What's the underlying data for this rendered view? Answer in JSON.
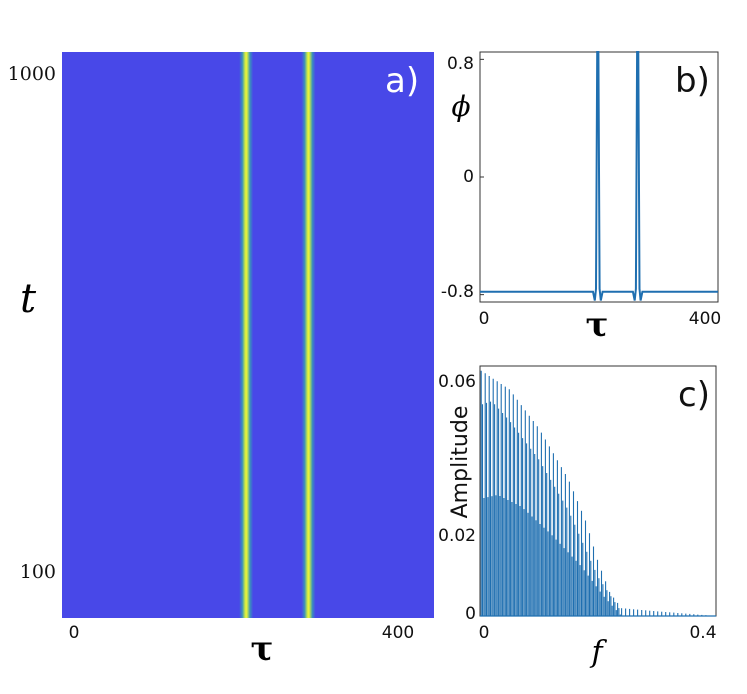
{
  "chart_data": [
    {
      "panel": "a)",
      "type": "heatmap",
      "xlabel": "τ",
      "ylabel": "t",
      "x_ticks": [
        "0",
        "400"
      ],
      "y_ticks": [
        "1000",
        "100"
      ],
      "xlim": [
        0,
        400
      ],
      "background_color": "#4848E8",
      "stripe_color": "#F2F23A",
      "stripes_x": [
        198,
        265
      ]
    },
    {
      "panel": "b)",
      "type": "line",
      "xlabel": "τ",
      "ylabel": "ϕ",
      "x_ticks": [
        "0",
        "400"
      ],
      "y_ticks": [
        "0.8",
        "0",
        "-0.8"
      ],
      "xlim": [
        0,
        400
      ],
      "ylim": [
        -0.85,
        0.85
      ],
      "baseline": -0.78,
      "peaks_x": [
        198,
        265
      ],
      "peak_value": 0.85,
      "color": "#1f6fb0"
    },
    {
      "panel": "c)",
      "type": "bar",
      "xlabel": "f",
      "ylabel": "Amplitude",
      "x_ticks": [
        "0",
        "0.4"
      ],
      "y_ticks": [
        "0.06",
        "0.02",
        "0"
      ],
      "xlim": [
        0,
        0.4
      ],
      "ylim": [
        0,
        0.064
      ],
      "color": "#1f6fb0",
      "envelope_high": [
        [
          0.0,
          0.063
        ],
        [
          0.05,
          0.058
        ],
        [
          0.1,
          0.048
        ],
        [
          0.15,
          0.035
        ],
        [
          0.18,
          0.024
        ],
        [
          0.2,
          0.014
        ],
        [
          0.22,
          0.006
        ],
        [
          0.24,
          0.002
        ],
        [
          0.3,
          0.0012
        ],
        [
          0.35,
          0.0006
        ],
        [
          0.4,
          0.0
        ]
      ],
      "envelope_low": [
        [
          0.0,
          0.054
        ],
        [
          0.02,
          0.055
        ],
        [
          0.05,
          0.05
        ],
        [
          0.1,
          0.04
        ],
        [
          0.15,
          0.027
        ],
        [
          0.2,
          0.01
        ],
        [
          0.24,
          0.001
        ]
      ],
      "envelope_third": [
        [
          0.0,
          0.03
        ],
        [
          0.03,
          0.031
        ],
        [
          0.07,
          0.028
        ],
        [
          0.12,
          0.021
        ],
        [
          0.17,
          0.013
        ],
        [
          0.21,
          0.005
        ],
        [
          0.24,
          0.0
        ]
      ]
    }
  ],
  "labels": {
    "a": {
      "panel": "a)",
      "xlabel": "τ",
      "ylabel": "t",
      "x0": "0",
      "x1": "400",
      "y_top": "1000",
      "y_bottom": "100"
    },
    "b": {
      "panel": "b)",
      "xlabel": "τ",
      "ylabel": "ϕ",
      "x0": "0",
      "x1": "400",
      "y_top": "0.8",
      "y_mid": "0",
      "y_bottom": "-0.8"
    },
    "c": {
      "panel": "c)",
      "xlabel": "f",
      "ylabel": "Amplitude",
      "x0": "0",
      "x1": "0.4",
      "y_top": "0.06",
      "y_mid": "0.02",
      "y_bottom": "0"
    }
  }
}
